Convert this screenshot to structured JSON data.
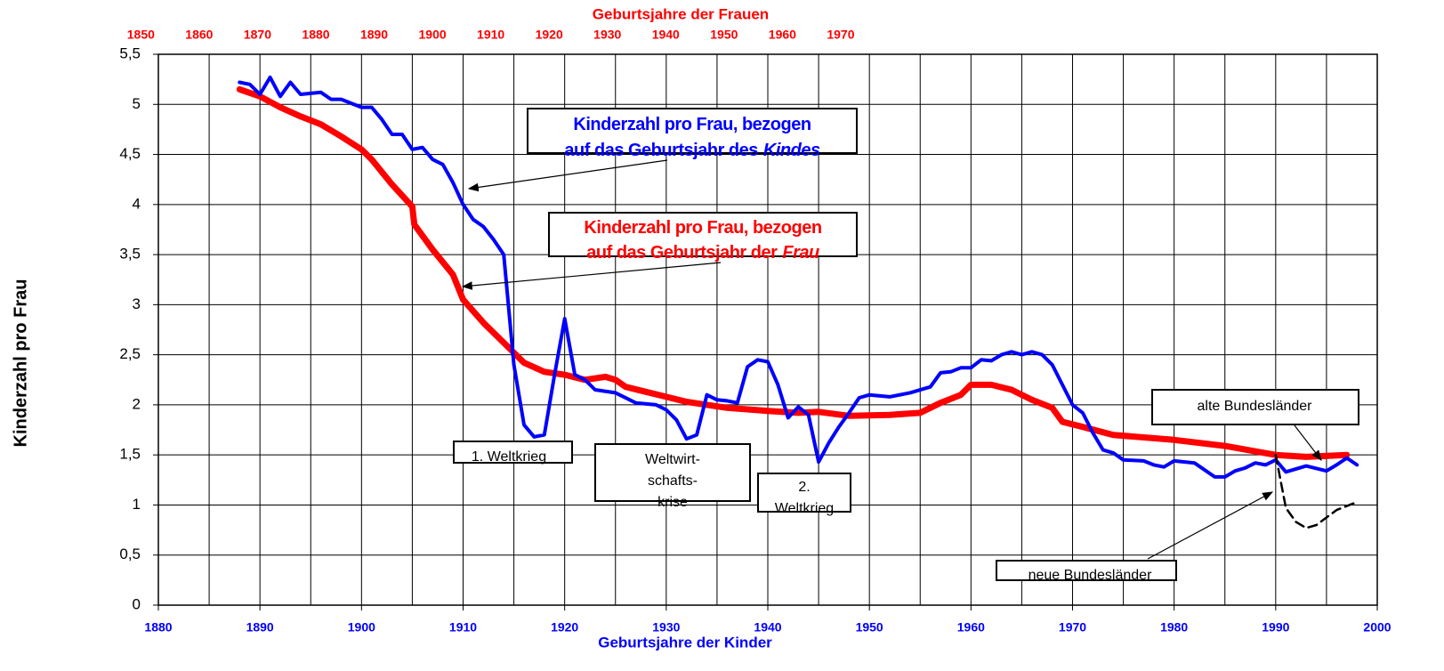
{
  "chart_data": {
    "type": "line",
    "title": "Geburtsjahre der Frauen",
    "xlabel": "Geburtsjahre der Kinder",
    "ylabel": "Kinderzahl pro Frau",
    "xlim": [
      1880,
      2000
    ],
    "xticks": [
      1880,
      1890,
      1900,
      1910,
      1920,
      1930,
      1940,
      1950,
      1960,
      1970,
      1980,
      1990,
      2000
    ],
    "x_minor_ticks": [
      1885,
      1895,
      1905,
      1915,
      1925,
      1935,
      1945,
      1955,
      1965,
      1975,
      1985,
      1995
    ],
    "x2lim": [
      1853,
      2062
    ],
    "x2ticks": [
      1850,
      1860,
      1870,
      1880,
      1890,
      1900,
      1910,
      1920,
      1930,
      1940,
      1950,
      1960,
      1970
    ],
    "ylim": [
      0,
      5.5
    ],
    "yticks": [
      0,
      {
        "value": 0.5,
        "label": "0,5"
      },
      1,
      {
        "value": 1.5,
        "label": "1,5"
      },
      2,
      {
        "value": 2.5,
        "label": "2,5"
      },
      3,
      {
        "value": 3.5,
        "label": "3,5"
      },
      4,
      {
        "value": 4.5,
        "label": "4,5"
      },
      5,
      {
        "value": 5.5,
        "label": "5,5"
      }
    ],
    "grid": true,
    "series": [
      {
        "color": "#0000ff",
        "dashed": false,
        "x": [
          1888,
          1889,
          1890,
          1891,
          1892,
          1893,
          1894,
          1896,
          1897,
          1898,
          1900,
          1901,
          1902,
          1903,
          1904,
          1905,
          1906,
          1907,
          1908,
          1909,
          1910,
          1911,
          1912,
          1913,
          1914,
          1915,
          1916,
          1917,
          1918,
          1919,
          1920,
          1921,
          1922,
          1923,
          1925,
          1927,
          1929,
          1930,
          1931,
          1932,
          1933,
          1934,
          1935,
          1936,
          1937,
          1938,
          1939,
          1940,
          1941,
          1942,
          1943,
          1944,
          1945,
          1946,
          1947,
          1948,
          1949,
          1950,
          1952,
          1954,
          1956,
          1957,
          1958,
          1959,
          1960,
          1961,
          1962,
          1963,
          1964,
          1965,
          1966,
          1967,
          1968,
          1969,
          1970,
          1971,
          1972,
          1973,
          1974,
          1975,
          1977,
          1978,
          1979,
          1980,
          1982,
          1984,
          1985,
          1986,
          1987,
          1988,
          1989,
          1990,
          1991,
          1993,
          1995,
          1996,
          1997,
          1998
        ],
        "values": [
          5.22,
          5.2,
          5.1,
          5.27,
          5.08,
          5.22,
          5.1,
          5.12,
          5.05,
          5.05,
          4.97,
          4.97,
          4.85,
          4.7,
          4.7,
          4.55,
          4.57,
          4.45,
          4.4,
          4.22,
          4.0,
          3.85,
          3.78,
          3.65,
          3.5,
          2.4,
          1.8,
          1.68,
          1.7,
          2.3,
          2.86,
          2.3,
          2.25,
          2.15,
          2.12,
          2.02,
          2.0,
          1.95,
          1.85,
          1.66,
          1.7,
          2.1,
          2.05,
          2.04,
          2.02,
          2.38,
          2.45,
          2.43,
          2.2,
          1.87,
          1.98,
          1.9,
          1.43,
          1.62,
          1.78,
          1.92,
          2.07,
          2.1,
          2.08,
          2.12,
          2.18,
          2.32,
          2.33,
          2.37,
          2.37,
          2.45,
          2.44,
          2.5,
          2.53,
          2.5,
          2.53,
          2.5,
          2.4,
          2.2,
          2.0,
          1.92,
          1.72,
          1.55,
          1.52,
          1.45,
          1.44,
          1.4,
          1.38,
          1.44,
          1.42,
          1.28,
          1.28,
          1.34,
          1.37,
          1.42,
          1.4,
          1.45,
          1.33,
          1.39,
          1.34,
          1.4,
          1.47,
          1.4
        ]
      },
      {
        "color": "#ff0000",
        "dashed": false,
        "x": [
          1888,
          1890,
          1892,
          1894,
          1896,
          1898,
          1900,
          1901,
          1903,
          1905,
          1905.2,
          1907,
          1909,
          1910,
          1912,
          1914,
          1916,
          1918,
          1920,
          1922,
          1924,
          1925,
          1926,
          1928,
          1930,
          1932,
          1934,
          1936,
          1940,
          1943,
          1945,
          1948,
          1952,
          1955,
          1957,
          1959,
          1960,
          1962,
          1964,
          1966,
          1968,
          1969,
          1971,
          1974,
          1980,
          1985,
          1990,
          1993,
          1997
        ],
        "values": [
          5.15,
          5.08,
          4.97,
          4.88,
          4.8,
          4.68,
          4.55,
          4.45,
          4.2,
          3.98,
          3.8,
          3.55,
          3.3,
          3.05,
          2.82,
          2.62,
          2.42,
          2.33,
          2.3,
          2.25,
          2.28,
          2.25,
          2.18,
          2.13,
          2.08,
          2.03,
          2.0,
          1.97,
          1.94,
          1.92,
          1.93,
          1.89,
          1.9,
          1.92,
          2.02,
          2.1,
          2.2,
          2.2,
          2.15,
          2.05,
          1.97,
          1.83,
          1.78,
          1.7,
          1.65,
          1.59,
          1.5,
          1.48,
          1.5
        ]
      },
      {
        "color": "#000000",
        "dashed": true,
        "x": [
          1990,
          1991,
          1992,
          1993,
          1994,
          1996,
          1998
        ],
        "values": [
          1.5,
          0.97,
          0.83,
          0.77,
          0.8,
          0.95,
          1.03
        ]
      }
    ],
    "annotations": [
      {
        "color": "#0000ff",
        "lines": [
          [
            "Kinderzahl pro Frau, bezogen"
          ],
          [
            "auf das Geburtsjahr des",
            "Kindes"
          ]
        ]
      },
      {
        "color": "#ff0000",
        "lines": [
          [
            "Kinderzahl pro Frau, bezogen"
          ],
          [
            "auf das Geburtsjahr der",
            "Frau"
          ]
        ]
      },
      {
        "color": "#000000",
        "lines": [
          [
            "1. Weltkrieg"
          ]
        ]
      },
      {
        "color": "#000000",
        "lines": [
          [
            "Weltwirt-"
          ],
          [
            "schafts-"
          ],
          [
            "krise"
          ]
        ]
      },
      {
        "color": "#000000",
        "lines": [
          [
            "2."
          ],
          [
            "Weltkrieg"
          ]
        ]
      },
      {
        "color": "#000000",
        "lines": [
          [
            "alte Bundesländer"
          ]
        ]
      },
      {
        "color": "#000000",
        "lines": [
          [
            "neue Bundesländer"
          ]
        ]
      }
    ]
  }
}
